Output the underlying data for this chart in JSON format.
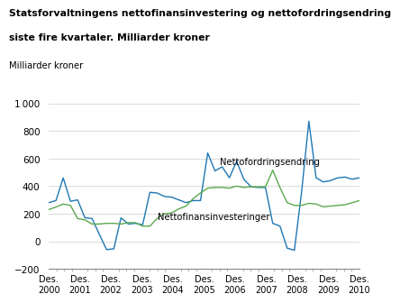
{
  "title_line1": "Statsforvaltningens nettofinansinvestering og nettofordringsendring",
  "title_line2": "siste fire kvartaler. Milliarder kroner",
  "ylabel": "Milliarder kroner",
  "ylim": [
    -200,
    1000
  ],
  "yticks": [
    -200,
    0,
    200,
    400,
    600,
    800,
    1000
  ],
  "xlabel_labels": [
    "Des.\n2000",
    "Des.\n2001",
    "Des.\n2002",
    "Des.\n2003",
    "Des.\n2004",
    "Des.\n2005",
    "Des.\n2006",
    "Des.\n2007",
    "Des.\n2008",
    "Des.\n2009",
    "Des.\n2010"
  ],
  "blue_color": "#1F77B4",
  "green_color": "#5BA84D",
  "label_nettofordring": "Nettofordringsendring",
  "label_nettofin": "Nettofinansinvesteringer",
  "blue_y": [
    280,
    295,
    460,
    290,
    300,
    170,
    165,
    50,
    -60,
    -55,
    170,
    125,
    130,
    120,
    355,
    350,
    325,
    320,
    300,
    280,
    295,
    295,
    640,
    510,
    540,
    460,
    580,
    450,
    395,
    390,
    390,
    130,
    110,
    -50,
    -65,
    360,
    870,
    460,
    430,
    440,
    460,
    465,
    450,
    460
  ],
  "green_y": [
    230,
    248,
    270,
    260,
    165,
    155,
    125,
    125,
    130,
    130,
    125,
    135,
    135,
    110,
    110,
    165,
    200,
    205,
    235,
    255,
    310,
    350,
    385,
    390,
    390,
    385,
    400,
    390,
    395,
    395,
    395,
    515,
    390,
    280,
    260,
    260,
    275,
    270,
    250,
    255,
    260,
    265,
    280,
    295
  ]
}
